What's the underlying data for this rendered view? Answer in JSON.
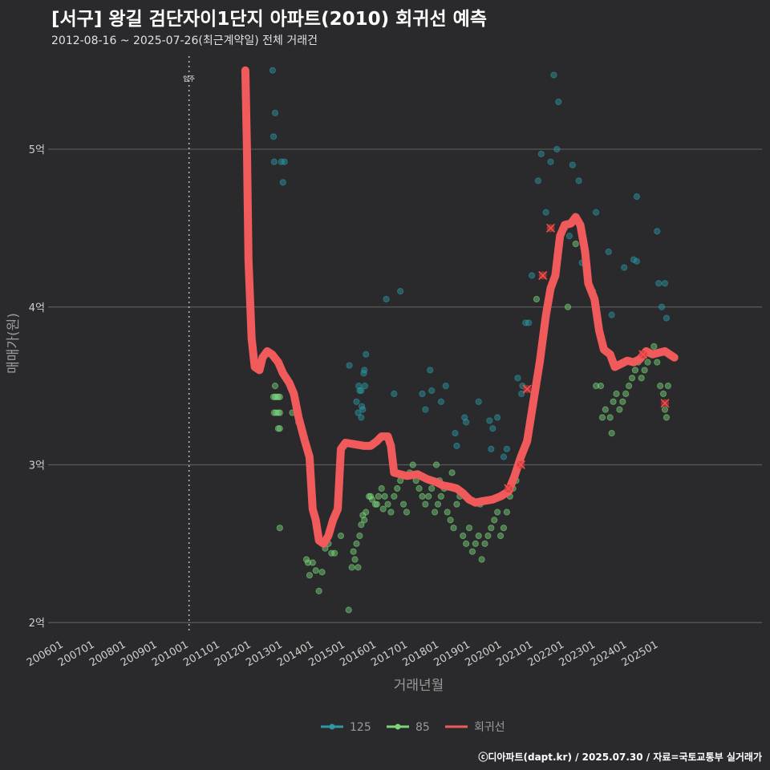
{
  "title": "[서구] 왕길 검단자이1단지 아파트(2010) 회귀선 예측",
  "subtitle": "2012-08-16 ~ 2025-07-26(최근계약일) 전체 거래건",
  "footer": "ⓒ디아파트(dapt.kr) / 2025.07.30 / 자료=국토교통부 실거래가",
  "colors": {
    "s125": "#2a9aa6",
    "s85": "#7bd67b",
    "trend": "#f05a5a",
    "grid": "#5a5a5a",
    "bg": "#2a2a2c"
  },
  "chart_data": {
    "type": "scatter",
    "xlabel": "거래년월",
    "ylabel": "매매가(원)",
    "x_range": [
      2005.5,
      2028.3
    ],
    "ylim": [
      1.93,
      5.6
    ],
    "y_ticks": [
      {
        "v": 2,
        "label": "2억"
      },
      {
        "v": 3,
        "label": "3억"
      },
      {
        "v": 4,
        "label": "4억"
      },
      {
        "v": 5,
        "label": "5억"
      }
    ],
    "x_ticks": [
      "200601",
      "200701",
      "200801",
      "200901",
      "201001",
      "201101",
      "201201",
      "201301",
      "201401",
      "201501",
      "201601",
      "201701",
      "201801",
      "201901",
      "202001",
      "202101",
      "202201",
      "202301",
      "202401",
      "202501"
    ],
    "annotation": {
      "label": "입주",
      "x": 2010.0
    },
    "legend": [
      "125",
      "85",
      "회귀선"
    ],
    "series": [
      {
        "name": "125",
        "points": [
          [
            2012.67,
            5.5
          ],
          [
            2012.7,
            5.08
          ],
          [
            2012.75,
            5.23
          ],
          [
            2012.72,
            4.92
          ],
          [
            2012.95,
            4.92
          ],
          [
            2013.05,
            4.92
          ],
          [
            2013.0,
            4.79
          ],
          [
            2015.35,
            3.4
          ],
          [
            2015.42,
            3.5
          ],
          [
            2015.45,
            3.47
          ],
          [
            2015.5,
            3.47
          ],
          [
            2015.52,
            3.37
          ],
          [
            2015.55,
            3.35
          ],
          [
            2015.5,
            3.3
          ],
          [
            2015.62,
            3.5
          ],
          [
            2015.6,
            3.6
          ],
          [
            2015.58,
            3.58
          ],
          [
            2015.65,
            3.7
          ],
          [
            2015.4,
            3.33
          ],
          [
            2015.12,
            3.63
          ],
          [
            2016.3,
            4.05
          ],
          [
            2016.55,
            3.45
          ],
          [
            2016.75,
            4.1
          ],
          [
            2017.45,
            3.45
          ],
          [
            2017.55,
            3.35
          ],
          [
            2017.7,
            3.6
          ],
          [
            2017.75,
            3.47
          ],
          [
            2018.05,
            3.4
          ],
          [
            2018.2,
            3.5
          ],
          [
            2018.5,
            3.2
          ],
          [
            2018.55,
            3.12
          ],
          [
            2018.85,
            3.27
          ],
          [
            2018.8,
            3.3
          ],
          [
            2019.25,
            3.4
          ],
          [
            2019.6,
            3.28
          ],
          [
            2019.7,
            3.23
          ],
          [
            2019.85,
            3.3
          ],
          [
            2019.65,
            3.1
          ],
          [
            2020.05,
            3.05
          ],
          [
            2020.15,
            3.1
          ],
          [
            2020.5,
            3.55
          ],
          [
            2020.62,
            3.45
          ],
          [
            2020.65,
            3.5
          ],
          [
            2020.75,
            3.9
          ],
          [
            2020.85,
            3.9
          ],
          [
            2020.95,
            4.2
          ],
          [
            2021.15,
            4.8
          ],
          [
            2021.25,
            4.97
          ],
          [
            2021.4,
            4.6
          ],
          [
            2021.55,
            4.92
          ],
          [
            2021.65,
            5.47
          ],
          [
            2021.75,
            5.0
          ],
          [
            2021.8,
            5.3
          ],
          [
            2022.0,
            4.5
          ],
          [
            2022.15,
            4.45
          ],
          [
            2022.25,
            4.9
          ],
          [
            2022.45,
            4.8
          ],
          [
            2022.55,
            4.28
          ],
          [
            2022.9,
            4.1
          ],
          [
            2023.0,
            4.6
          ],
          [
            2023.4,
            4.35
          ],
          [
            2023.5,
            3.95
          ],
          [
            2023.9,
            4.25
          ],
          [
            2024.2,
            4.3
          ],
          [
            2024.3,
            4.29
          ],
          [
            2024.3,
            4.7
          ],
          [
            2024.95,
            4.48
          ],
          [
            2025.1,
            4.0
          ],
          [
            2025.0,
            4.15
          ],
          [
            2025.2,
            4.15
          ],
          [
            2025.25,
            3.93
          ]
        ]
      },
      {
        "name": "85",
        "points": [
          [
            2012.7,
            3.43
          ],
          [
            2012.75,
            3.43
          ],
          [
            2012.8,
            3.43
          ],
          [
            2012.85,
            3.43
          ],
          [
            2012.9,
            3.43
          ],
          [
            2012.72,
            3.33
          ],
          [
            2012.78,
            3.33
          ],
          [
            2012.85,
            3.33
          ],
          [
            2012.9,
            3.33
          ],
          [
            2012.85,
            3.23
          ],
          [
            2012.9,
            3.23
          ],
          [
            2012.75,
            3.5
          ],
          [
            2012.9,
            2.6
          ],
          [
            2013.3,
            3.33
          ],
          [
            2013.5,
            3.27
          ],
          [
            2013.75,
            2.4
          ],
          [
            2013.8,
            2.38
          ],
          [
            2013.85,
            2.3
          ],
          [
            2013.95,
            2.38
          ],
          [
            2014.05,
            2.33
          ],
          [
            2014.15,
            2.2
          ],
          [
            2014.25,
            2.32
          ],
          [
            2014.35,
            2.47
          ],
          [
            2014.45,
            2.5
          ],
          [
            2014.55,
            2.44
          ],
          [
            2014.65,
            2.44
          ],
          [
            2014.85,
            2.55
          ],
          [
            2013.9,
            2.8
          ],
          [
            2015.1,
            2.08
          ],
          [
            2015.2,
            2.35
          ],
          [
            2015.3,
            2.4
          ],
          [
            2015.25,
            2.45
          ],
          [
            2015.35,
            2.5
          ],
          [
            2015.4,
            2.35
          ],
          [
            2015.45,
            2.55
          ],
          [
            2015.5,
            2.62
          ],
          [
            2015.55,
            2.68
          ],
          [
            2015.6,
            2.65
          ],
          [
            2015.65,
            2.7
          ],
          [
            2015.75,
            2.8
          ],
          [
            2015.85,
            2.78
          ],
          [
            2015.95,
            2.75
          ],
          [
            2016.05,
            2.8
          ],
          [
            2016.15,
            2.85
          ],
          [
            2016.25,
            2.8
          ],
          [
            2016.35,
            2.75
          ],
          [
            2016.45,
            2.7
          ],
          [
            2016.55,
            2.8
          ],
          [
            2016.65,
            2.85
          ],
          [
            2016.75,
            2.9
          ],
          [
            2016.85,
            2.75
          ],
          [
            2016.95,
            2.7
          ],
          [
            2016.2,
            2.72
          ],
          [
            2016.0,
            2.75
          ],
          [
            2015.8,
            2.8
          ],
          [
            2017.05,
            2.95
          ],
          [
            2017.15,
            3.0
          ],
          [
            2017.25,
            2.9
          ],
          [
            2017.35,
            2.85
          ],
          [
            2017.45,
            2.8
          ],
          [
            2017.55,
            2.75
          ],
          [
            2017.65,
            2.8
          ],
          [
            2017.75,
            2.85
          ],
          [
            2017.85,
            2.7
          ],
          [
            2017.95,
            2.75
          ],
          [
            2018.05,
            2.8
          ],
          [
            2018.15,
            2.85
          ],
          [
            2018.25,
            2.7
          ],
          [
            2018.35,
            2.65
          ],
          [
            2018.45,
            2.6
          ],
          [
            2018.55,
            2.75
          ],
          [
            2018.65,
            2.8
          ],
          [
            2018.75,
            2.55
          ],
          [
            2018.85,
            2.5
          ],
          [
            2018.95,
            2.6
          ],
          [
            2019.05,
            2.45
          ],
          [
            2019.15,
            2.5
          ],
          [
            2019.25,
            2.55
          ],
          [
            2019.35,
            2.4
          ],
          [
            2019.45,
            2.5
          ],
          [
            2019.55,
            2.55
          ],
          [
            2019.65,
            2.6
          ],
          [
            2019.75,
            2.65
          ],
          [
            2019.85,
            2.7
          ],
          [
            2019.95,
            2.55
          ],
          [
            2020.05,
            2.6
          ],
          [
            2020.15,
            2.7
          ],
          [
            2020.25,
            2.8
          ],
          [
            2020.35,
            2.85
          ],
          [
            2020.45,
            2.9
          ],
          [
            2018.0,
            2.9
          ],
          [
            2017.9,
            3.0
          ],
          [
            2018.4,
            2.95
          ],
          [
            2019.3,
            2.75
          ],
          [
            2023.0,
            3.5
          ],
          [
            2023.15,
            3.5
          ],
          [
            2023.2,
            3.3
          ],
          [
            2023.3,
            3.35
          ],
          [
            2023.45,
            3.3
          ],
          [
            2023.55,
            3.4
          ],
          [
            2023.65,
            3.45
          ],
          [
            2023.75,
            3.35
          ],
          [
            2023.85,
            3.4
          ],
          [
            2023.95,
            3.45
          ],
          [
            2024.05,
            3.5
          ],
          [
            2024.15,
            3.55
          ],
          [
            2024.25,
            3.6
          ],
          [
            2024.35,
            3.65
          ],
          [
            2024.45,
            3.55
          ],
          [
            2024.55,
            3.6
          ],
          [
            2024.65,
            3.65
          ],
          [
            2024.75,
            3.7
          ],
          [
            2024.85,
            3.75
          ],
          [
            2024.95,
            3.65
          ],
          [
            2025.05,
            3.5
          ],
          [
            2025.15,
            3.45
          ],
          [
            2025.2,
            3.35
          ],
          [
            2025.25,
            3.3
          ],
          [
            2025.3,
            3.5
          ],
          [
            2023.5,
            3.2
          ],
          [
            2022.35,
            4.4
          ],
          [
            2022.1,
            4.0
          ],
          [
            2021.1,
            4.05
          ]
        ]
      }
    ],
    "trend": {
      "name": "회귀선",
      "points": [
        [
          2011.8,
          5.5
        ],
        [
          2011.85,
          5.0
        ],
        [
          2011.9,
          4.3
        ],
        [
          2012.0,
          3.8
        ],
        [
          2012.1,
          3.62
        ],
        [
          2012.25,
          3.6
        ],
        [
          2012.35,
          3.68
        ],
        [
          2012.5,
          3.72
        ],
        [
          2012.65,
          3.7
        ],
        [
          2012.85,
          3.65
        ],
        [
          2013.0,
          3.58
        ],
        [
          2013.2,
          3.52
        ],
        [
          2013.35,
          3.45
        ],
        [
          2013.5,
          3.3
        ],
        [
          2013.7,
          3.15
        ],
        [
          2013.85,
          3.05
        ],
        [
          2013.95,
          2.72
        ],
        [
          2014.05,
          2.65
        ],
        [
          2014.15,
          2.52
        ],
        [
          2014.3,
          2.5
        ],
        [
          2014.45,
          2.55
        ],
        [
          2014.6,
          2.65
        ],
        [
          2014.75,
          2.72
        ],
        [
          2014.85,
          3.1
        ],
        [
          2015.0,
          3.14
        ],
        [
          2015.3,
          3.13
        ],
        [
          2015.6,
          3.12
        ],
        [
          2015.8,
          3.12
        ],
        [
          2016.0,
          3.15
        ],
        [
          2016.15,
          3.18
        ],
        [
          2016.35,
          3.18
        ],
        [
          2016.45,
          3.12
        ],
        [
          2016.55,
          2.95
        ],
        [
          2016.75,
          2.94
        ],
        [
          2016.95,
          2.93
        ],
        [
          2017.3,
          2.94
        ],
        [
          2017.6,
          2.91
        ],
        [
          2017.9,
          2.89
        ],
        [
          2018.1,
          2.87
        ],
        [
          2018.35,
          2.86
        ],
        [
          2018.55,
          2.85
        ],
        [
          2018.75,
          2.82
        ],
        [
          2018.95,
          2.78
        ],
        [
          2019.15,
          2.76
        ],
        [
          2019.4,
          2.77
        ],
        [
          2019.7,
          2.78
        ],
        [
          2019.95,
          2.8
        ],
        [
          2020.2,
          2.83
        ],
        [
          2020.4,
          2.93
        ],
        [
          2020.6,
          3.05
        ],
        [
          2020.8,
          3.15
        ],
        [
          2021.0,
          3.4
        ],
        [
          2021.2,
          3.65
        ],
        [
          2021.4,
          3.95
        ],
        [
          2021.55,
          4.12
        ],
        [
          2021.7,
          4.2
        ],
        [
          2021.85,
          4.45
        ],
        [
          2022.0,
          4.52
        ],
        [
          2022.2,
          4.53
        ],
        [
          2022.35,
          4.57
        ],
        [
          2022.5,
          4.52
        ],
        [
          2022.65,
          4.35
        ],
        [
          2022.75,
          4.15
        ],
        [
          2022.95,
          4.05
        ],
        [
          2023.1,
          3.85
        ],
        [
          2023.25,
          3.73
        ],
        [
          2023.45,
          3.7
        ],
        [
          2023.6,
          3.62
        ],
        [
          2023.8,
          3.64
        ],
        [
          2024.0,
          3.66
        ],
        [
          2024.2,
          3.65
        ],
        [
          2024.4,
          3.67
        ],
        [
          2024.6,
          3.72
        ],
        [
          2024.8,
          3.7
        ],
        [
          2025.0,
          3.71
        ],
        [
          2025.2,
          3.72
        ],
        [
          2025.35,
          3.7
        ],
        [
          2025.5,
          3.68
        ]
      ]
    },
    "markers": [
      [
        2020.8,
        3.48
      ],
      [
        2021.3,
        4.2
      ],
      [
        2021.55,
        4.5
      ],
      [
        2020.2,
        2.85
      ],
      [
        2020.6,
        3.0
      ],
      [
        2024.5,
        3.7
      ],
      [
        2025.2,
        3.39
      ]
    ]
  }
}
